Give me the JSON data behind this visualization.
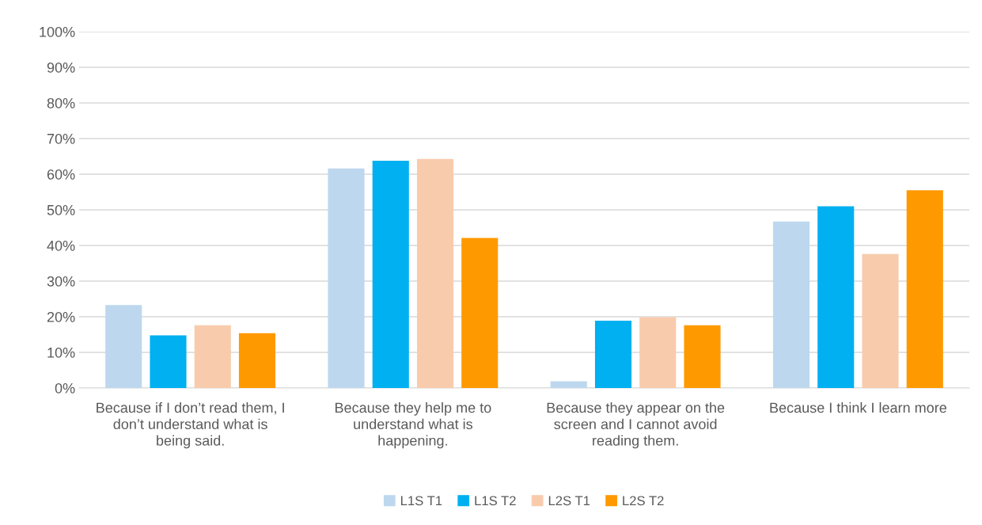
{
  "chart_data": {
    "type": "bar",
    "categories": [
      "Because if I don’t read them, I don’t understand what is being said.",
      "Because they help me to understand what is happening.",
      "Because they appear on the screen and I cannot avoid reading them.",
      "Because I think I learn more"
    ],
    "series": [
      {
        "name": "L1S T1",
        "color": "#bdd7ee",
        "values": [
          23.3,
          61.6,
          1.9,
          46.7
        ]
      },
      {
        "name": "L1S T2",
        "color": "#00b0f0",
        "values": [
          14.8,
          63.8,
          18.9,
          51.0
        ]
      },
      {
        "name": "L2S T1",
        "color": "#f8cbad",
        "values": [
          17.6,
          64.3,
          19.9,
          37.6
        ]
      },
      {
        "name": "L2S T2",
        "color": "#ff9900",
        "values": [
          15.4,
          42.1,
          17.6,
          55.5
        ]
      }
    ],
    "ylim": [
      0,
      100
    ],
    "yticks": [
      {
        "value": 0,
        "label": "0%"
      },
      {
        "value": 10,
        "label": "10%"
      },
      {
        "value": 20,
        "label": "20%"
      },
      {
        "value": 30,
        "label": "30%"
      },
      {
        "value": 40,
        "label": "40%"
      },
      {
        "value": 50,
        "label": "50%"
      },
      {
        "value": 60,
        "label": "60%"
      },
      {
        "value": 70,
        "label": "70%"
      },
      {
        "value": 80,
        "label": "80%"
      },
      {
        "value": 90,
        "label": "90%"
      },
      {
        "value": 100,
        "label": "100%"
      }
    ],
    "grid": "y",
    "legend": "bottom"
  }
}
